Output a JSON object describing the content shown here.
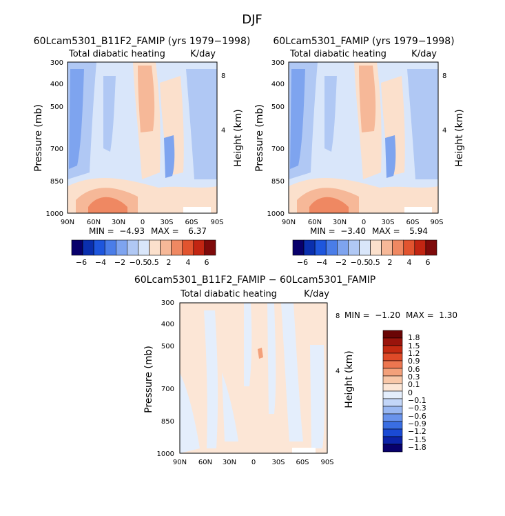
{
  "figure": {
    "title": "DJF"
  },
  "colors": {
    "bwr_12": [
      "#08006b",
      "#0a2fae",
      "#1e56dd",
      "#4a7de8",
      "#7ea4ef",
      "#b0c8f4",
      "#d9e6fa",
      "#fbe0cc",
      "#f6b898",
      "#ef8862",
      "#e2542f",
      "#c22512",
      "#7e0a0a"
    ],
    "diff_levels_colors": [
      "#08006b",
      "#0c23a8",
      "#1a4ad4",
      "#3a6ee2",
      "#6993ec",
      "#9ab8f2",
      "#c3d6f8",
      "#e4eefc",
      "#fce6d6",
      "#f8c7a8",
      "#f3a07a",
      "#ec7650",
      "#df4a28",
      "#c42a12",
      "#9a140c",
      "#6a0505"
    ]
  },
  "chart_data": [
    {
      "type": "heatmap",
      "title": "60Lcam5301_B11F2_FAMIP (yrs 1979−1998)",
      "subtitle_left": "Total diabatic heating",
      "subtitle_right": "K/day",
      "ylabel": "Pressure (mb)",
      "ylabel_right": "Height (km)",
      "x_ticks": [
        "90N",
        "60N",
        "30N",
        "0",
        "30S",
        "60S",
        "90S"
      ],
      "y_ticks": [
        "300",
        "400",
        "500",
        "700",
        "850",
        "1000"
      ],
      "y_right_ticks": [
        "8",
        "4"
      ],
      "min_label": "MIN =",
      "min": "−4.93",
      "max_label": "MAX =",
      "max": "6.37",
      "levels": [
        "−6",
        "−4",
        "−2",
        "−0.5",
        "0.5",
        "2",
        "4",
        "6"
      ]
    },
    {
      "type": "heatmap",
      "title": "60Lcam5301_FAMIP (yrs 1979−1998)",
      "subtitle_left": "Total diabatic heating",
      "subtitle_right": "K/day",
      "ylabel": "Pressure (mb)",
      "ylabel_right": "Height (km)",
      "x_ticks": [
        "90N",
        "60N",
        "30N",
        "0",
        "30S",
        "60S",
        "90S"
      ],
      "y_ticks": [
        "300",
        "400",
        "500",
        "700",
        "850",
        "1000"
      ],
      "y_right_ticks": [
        "8",
        "4"
      ],
      "min_label": "MIN =",
      "min": "−3.40",
      "max_label": "MAX =",
      "max": "5.94",
      "levels": [
        "−6",
        "−4",
        "−2",
        "−0.5",
        "0.5",
        "2",
        "4",
        "6"
      ]
    },
    {
      "type": "heatmap",
      "title": "60Lcam5301_B11F2_FAMIP − 60Lcam5301_FAMIP",
      "subtitle_left": "Total diabatic heating",
      "subtitle_right": "K/day",
      "ylabel": "Pressure (mb)",
      "ylabel_right": "Height (km)",
      "x_ticks": [
        "90N",
        "60N",
        "30N",
        "0",
        "30S",
        "60S",
        "90S"
      ],
      "y_ticks": [
        "300",
        "400",
        "500",
        "700",
        "850",
        "1000"
      ],
      "y_right_ticks": [
        "8",
        "4"
      ],
      "min_label": "MIN =",
      "min": "−1.20",
      "max_label": "MAX =",
      "max": "1.30",
      "levels": [
        "1.8",
        "1.5",
        "1.2",
        "0.9",
        "0.6",
        "0.3",
        "0.1",
        "0",
        "−0.1",
        "−0.3",
        "−0.6",
        "−0.9",
        "−1.2",
        "−1.5",
        "−1.8"
      ]
    }
  ]
}
